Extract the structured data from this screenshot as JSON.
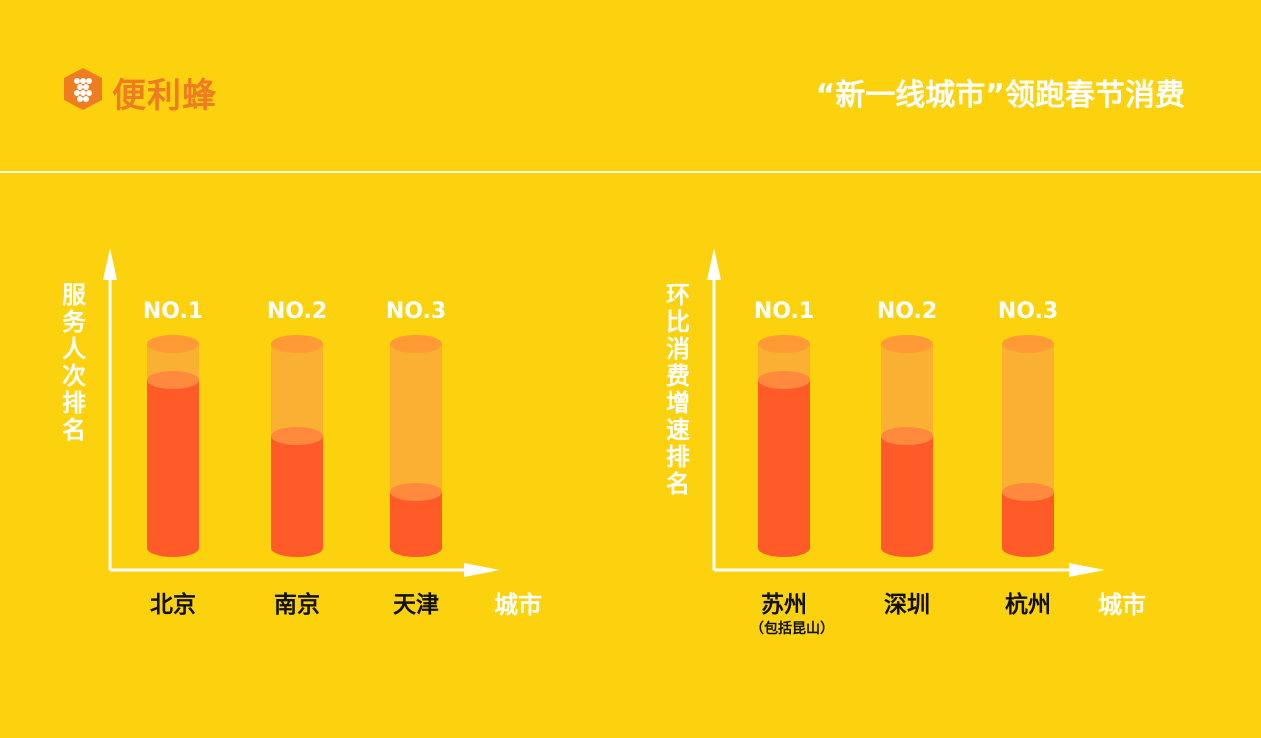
{
  "logo": {
    "text": "便利蜂"
  },
  "header": {
    "title": "“新一线城市”领跑春节消费"
  },
  "colors": {
    "background": "#FCD20F",
    "bar_fill": "#FF5B28",
    "bar_top": "#FF8A3D",
    "track": "#F9A640",
    "track_top": "#FF9A35",
    "logo": "#F07C22",
    "axis": "#FFFFFF",
    "label_dark": "#111111"
  },
  "chart_data": [
    {
      "type": "bar",
      "ylabel": "服务人次排名",
      "xlabel": "城市",
      "categories": [
        "北京",
        "南京",
        "天津"
      ],
      "category_notes": [
        "",
        "",
        ""
      ],
      "rank_labels": [
        "NO.1",
        "NO.2",
        "NO.3"
      ],
      "values": [
        3,
        2,
        1
      ]
    },
    {
      "type": "bar",
      "ylabel": "环比消费增速排名",
      "xlabel": "城市",
      "categories": [
        "苏州",
        "深圳",
        "杭州"
      ],
      "category_notes": [
        "（包括昆山）",
        "",
        ""
      ],
      "rank_labels": [
        "NO.1",
        "NO.2",
        "NO.3"
      ],
      "values": [
        3,
        2,
        1
      ]
    }
  ]
}
